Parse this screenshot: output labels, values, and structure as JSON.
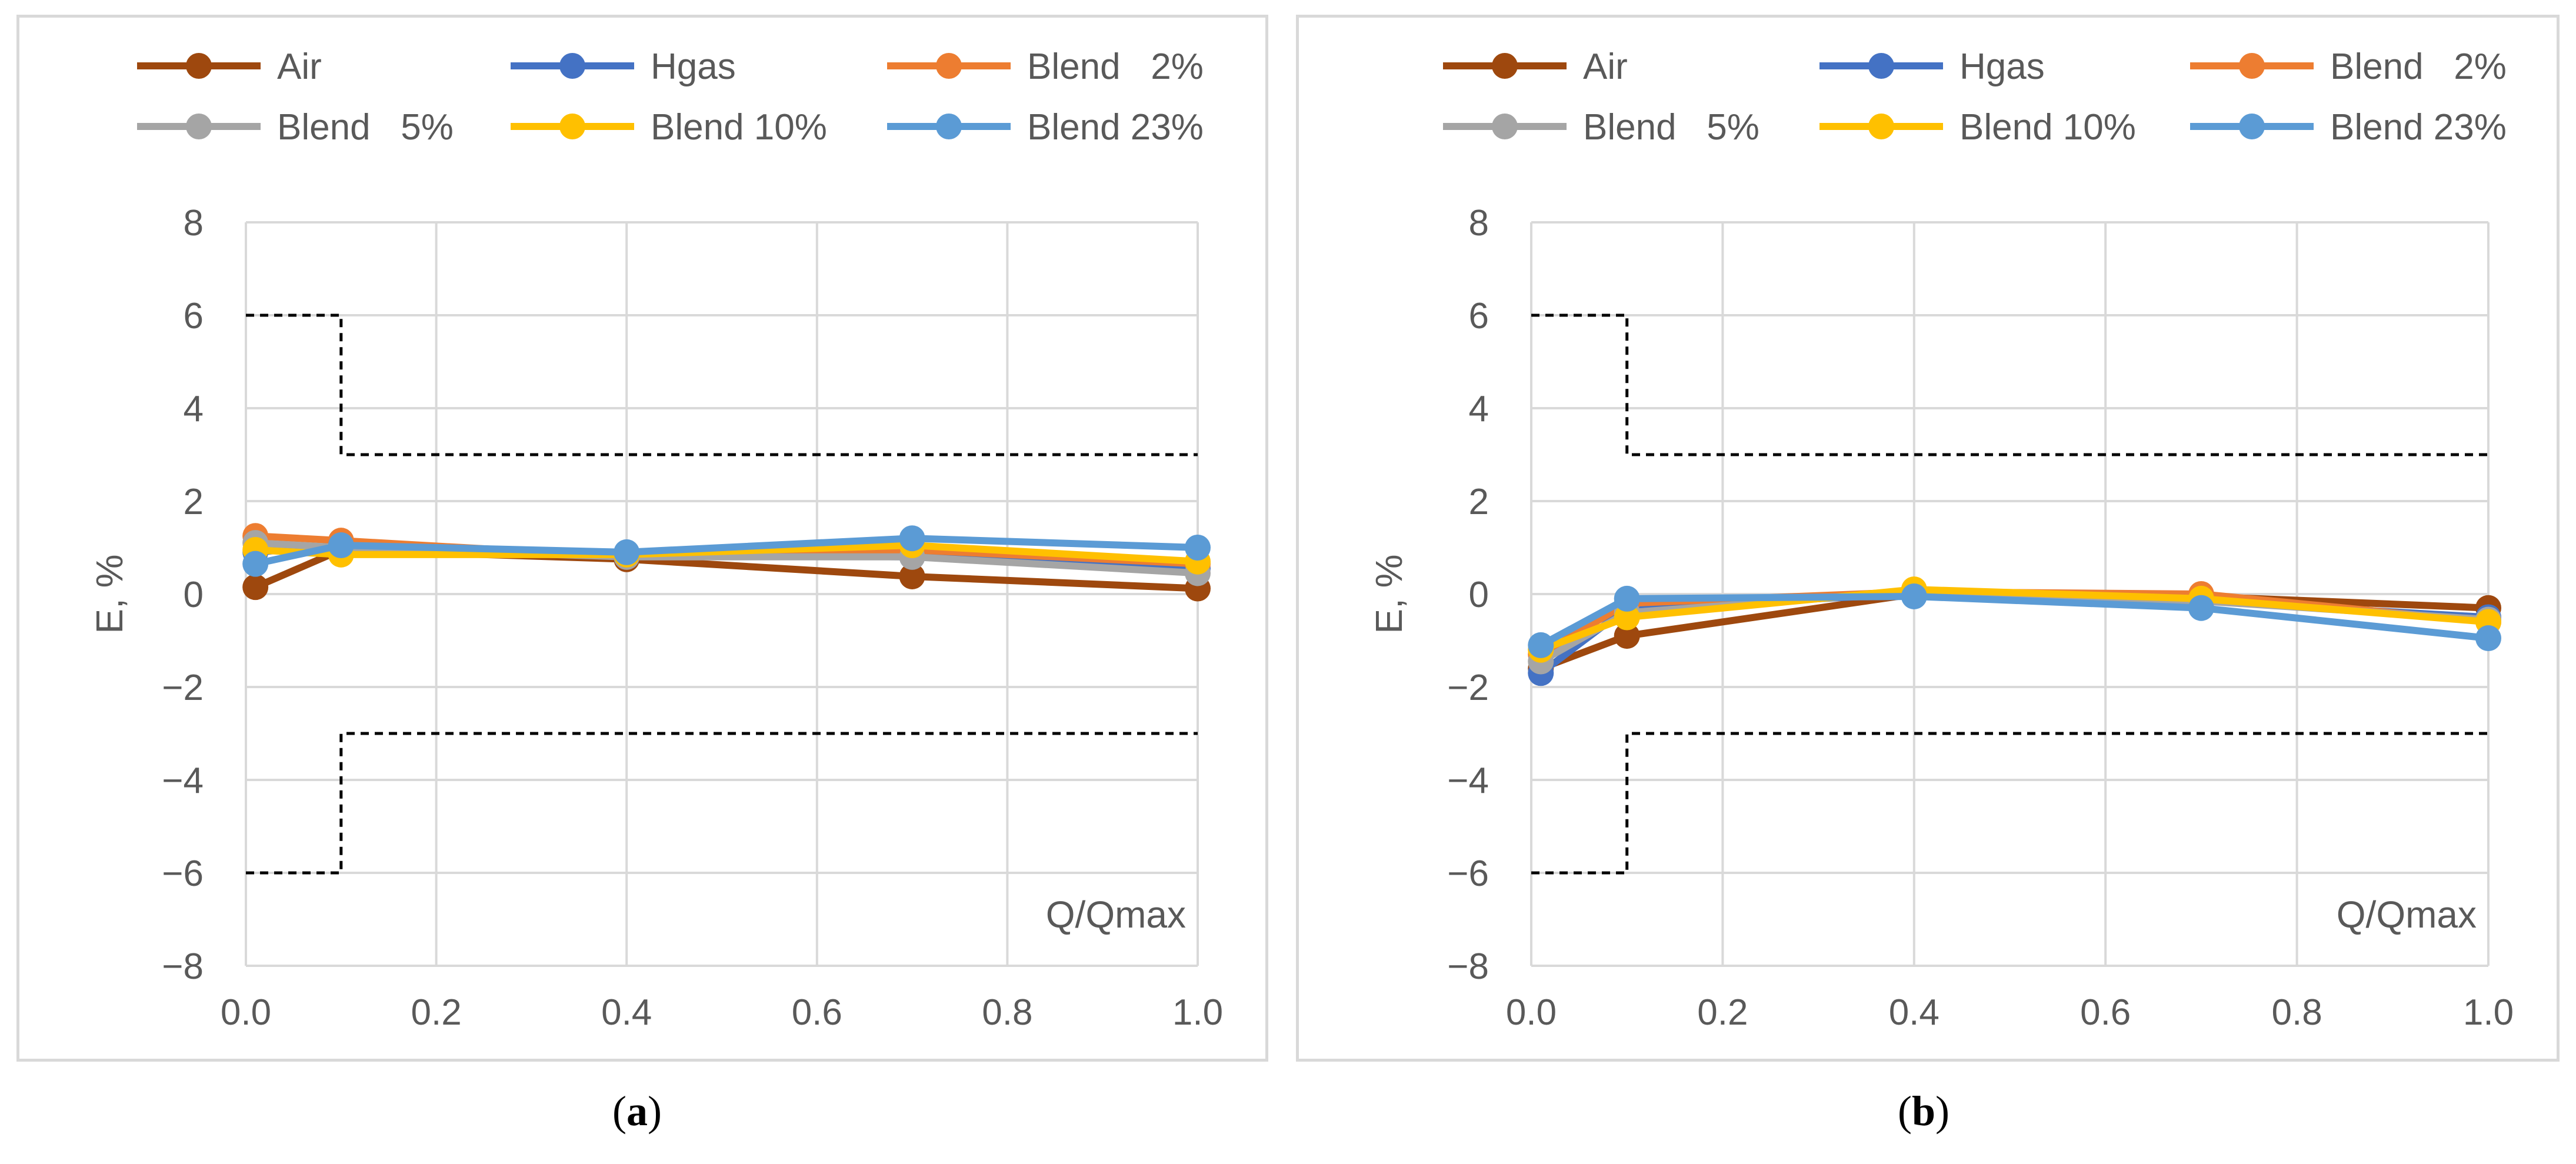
{
  "chart_data": [
    {
      "panel": "a",
      "type": "line",
      "x": [
        0.01,
        0.1,
        0.4,
        0.7,
        1.0
      ],
      "series": [
        {
          "name": "Air",
          "color": "#9e480e",
          "values": [
            0.15,
            0.95,
            0.75,
            0.38,
            0.12
          ]
        },
        {
          "name": "Hgas",
          "color": "#4472c4",
          "values": [
            0.9,
            1.05,
            0.85,
            0.8,
            0.55
          ]
        },
        {
          "name": "Blend   2%",
          "color": "#ed7d31",
          "values": [
            1.25,
            1.15,
            0.8,
            0.95,
            0.65
          ]
        },
        {
          "name": "Blend   5%",
          "color": "#a5a5a5",
          "values": [
            1.1,
            1.0,
            0.8,
            0.8,
            0.45
          ]
        },
        {
          "name": "Blend 10%",
          "color": "#ffc000",
          "values": [
            0.95,
            0.85,
            0.85,
            1.05,
            0.7
          ]
        },
        {
          "name": "Blend 23%",
          "color": "#5b9bd5",
          "values": [
            0.65,
            1.05,
            0.9,
            1.2,
            1.0
          ]
        }
      ],
      "limits": {
        "upper": [
          [
            0,
            6
          ],
          [
            0.1,
            6
          ],
          [
            0.1,
            3
          ],
          [
            1.0,
            3
          ]
        ],
        "lower": [
          [
            0,
            -6
          ],
          [
            0.1,
            -6
          ],
          [
            0.1,
            -3
          ],
          [
            1.0,
            -3
          ]
        ]
      },
      "xticks": [
        "0.0",
        "0.2",
        "0.4",
        "0.6",
        "0.8",
        "1.0"
      ],
      "yticks": [
        "8",
        "6",
        "4",
        "2",
        "0",
        "−2",
        "−4",
        "−6",
        "−8"
      ],
      "xlim": [
        0,
        1
      ],
      "ylim": [
        -8,
        8
      ],
      "ylabel": "E, %",
      "xlabel": "Q/Qmax",
      "grid": true,
      "legend": "top"
    },
    {
      "panel": "b",
      "type": "line",
      "x": [
        0.01,
        0.1,
        0.4,
        0.7,
        1.0
      ],
      "series": [
        {
          "name": "Air",
          "color": "#9e480e",
          "values": [
            -1.6,
            -0.9,
            0.0,
            -0.05,
            -0.3
          ]
        },
        {
          "name": "Hgas",
          "color": "#4472c4",
          "values": [
            -1.7,
            -0.3,
            0.0,
            -0.15,
            -0.5
          ]
        },
        {
          "name": "Blend   2%",
          "color": "#ed7d31",
          "values": [
            -1.3,
            -0.2,
            0.05,
            0.0,
            -0.6
          ]
        },
        {
          "name": "Blend   5%",
          "color": "#a5a5a5",
          "values": [
            -1.45,
            -0.4,
            0.05,
            -0.15,
            -0.55
          ]
        },
        {
          "name": "Blend 10%",
          "color": "#ffc000",
          "values": [
            -1.2,
            -0.5,
            0.1,
            -0.1,
            -0.6
          ]
        },
        {
          "name": "Blend 23%",
          "color": "#5b9bd5",
          "values": [
            -1.1,
            -0.1,
            -0.05,
            -0.3,
            -0.95
          ]
        }
      ],
      "limits": {
        "upper": [
          [
            0,
            6
          ],
          [
            0.1,
            6
          ],
          [
            0.1,
            3
          ],
          [
            1.0,
            3
          ]
        ],
        "lower": [
          [
            0,
            -6
          ],
          [
            0.1,
            -6
          ],
          [
            0.1,
            -3
          ],
          [
            1.0,
            -3
          ]
        ]
      },
      "xticks": [
        "0.0",
        "0.2",
        "0.4",
        "0.6",
        "0.8",
        "1.0"
      ],
      "yticks": [
        "8",
        "6",
        "4",
        "2",
        "0",
        "−2",
        "−4",
        "−6",
        "−8"
      ],
      "xlim": [
        0,
        1
      ],
      "ylim": [
        -8,
        8
      ],
      "ylabel": "E, %",
      "xlabel": "Q/Qmax",
      "grid": true,
      "legend": "top"
    }
  ],
  "captions": {
    "a": {
      "open": "(",
      "letter": "a",
      "close": ")"
    },
    "b": {
      "open": "(",
      "letter": "b",
      "close": ")"
    }
  }
}
